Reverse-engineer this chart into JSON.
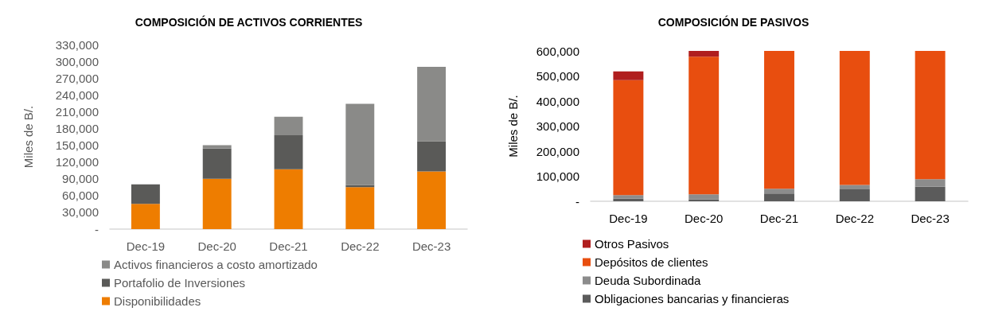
{
  "chart_data": [
    {
      "type": "bar",
      "title": "COMPOSICIÓN DE ACTIVOS CORRIENTES",
      "ylabel": "Miles de B/.",
      "stacked": true,
      "legend": "bottom",
      "grid": false,
      "categories": [
        "Dec-19",
        "Dec-20",
        "Dec-21",
        "Dec-22",
        "Dec-23"
      ],
      "ylim": [
        0,
        330000
      ],
      "yticks": [
        {
          "value": 0,
          "label": "-"
        },
        {
          "value": 30000,
          "label": "30,000"
        },
        {
          "value": 60000,
          "label": "60,000"
        },
        {
          "value": 90000,
          "label": "90,000"
        },
        {
          "value": 120000,
          "label": "120,000"
        },
        {
          "value": 150000,
          "label": "150,000"
        },
        {
          "value": 180000,
          "label": "180,000"
        },
        {
          "value": 210000,
          "label": "210,000"
        },
        {
          "value": 240000,
          "label": "240,000"
        },
        {
          "value": 270000,
          "label": "270,000"
        },
        {
          "value": 300000,
          "label": "300,000"
        },
        {
          "value": 330000,
          "label": "330,000"
        }
      ],
      "series": [
        {
          "name": "Disponibilidades",
          "color": "#ee7d00",
          "values": [
            45000,
            90000,
            107000,
            75000,
            103000
          ]
        },
        {
          "name": "Portafolio de Inversiones",
          "color": "#5a5a58",
          "values": [
            35000,
            54000,
            61000,
            4000,
            54000
          ]
        },
        {
          "name": "Activos financieros a costo amortizado",
          "color": "#8a8a88",
          "values": [
            null,
            6000,
            33000,
            145000,
            133000
          ]
        }
      ]
    },
    {
      "type": "bar",
      "title": "COMPOSICIÓN DE PASIVOS",
      "ylabel": "Miles de B/.",
      "stacked": true,
      "legend": "bottom",
      "grid": false,
      "categories": [
        "Dec-19",
        "Dec-20",
        "Dec-21",
        "Dec-22",
        "Dec-23"
      ],
      "ylim": [
        0,
        600000
      ],
      "yticks": [
        {
          "value": 0,
          "label": "-"
        },
        {
          "value": 100000,
          "label": "100,000"
        },
        {
          "value": 200000,
          "label": "200,000"
        },
        {
          "value": 300000,
          "label": "300,000"
        },
        {
          "value": 400000,
          "label": "400,000"
        },
        {
          "value": 500000,
          "label": "500,000"
        },
        {
          "value": 600000,
          "label": "600,000"
        }
      ],
      "series": [
        {
          "name": "Obligaciones bancarias y financieras",
          "color": "#5b5b5b",
          "values": [
            10000,
            7000,
            31000,
            48000,
            58000
          ]
        },
        {
          "name": "Deuda Subordinada",
          "color": "#8c8c8c",
          "values": [
            15000,
            21000,
            19000,
            17000,
            30000
          ]
        },
        {
          "name": "Depósitos de clientes",
          "color": "#e84e0f",
          "values": [
            458000,
            549000,
            550000,
            535000,
            512000
          ]
        },
        {
          "name": "Otros Pasivos",
          "color": "#b01e1e",
          "values": [
            35000,
            23000,
            null,
            null,
            null
          ]
        }
      ]
    }
  ]
}
